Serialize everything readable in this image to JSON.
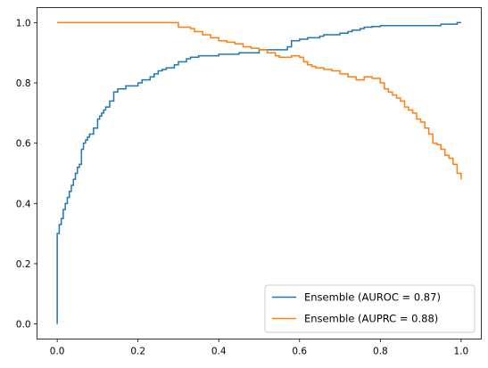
{
  "chart_data": {
    "type": "line",
    "title": "",
    "xlabel": "",
    "ylabel": "",
    "xlim": [
      -0.05,
      1.05
    ],
    "ylim": [
      -0.05,
      1.05
    ],
    "grid": false,
    "legend_position": "lower-right",
    "x_ticks": [
      "0.0",
      "0.2",
      "0.4",
      "0.6",
      "0.8",
      "1.0"
    ],
    "y_ticks": [
      "0.0",
      "0.2",
      "0.4",
      "0.6",
      "0.8",
      "1.0"
    ],
    "series": [
      {
        "name": "Ensemble (AUROC = 0.87)",
        "color": "#1f77b4",
        "step": true,
        "x": [
          0.0,
          0.0,
          0.005,
          0.01,
          0.015,
          0.02,
          0.025,
          0.03,
          0.035,
          0.04,
          0.045,
          0.05,
          0.055,
          0.06,
          0.065,
          0.07,
          0.075,
          0.08,
          0.09,
          0.1,
          0.105,
          0.11,
          0.115,
          0.12,
          0.13,
          0.14,
          0.15,
          0.155,
          0.17,
          0.18,
          0.2,
          0.21,
          0.23,
          0.24,
          0.25,
          0.26,
          0.27,
          0.28,
          0.29,
          0.3,
          0.32,
          0.33,
          0.35,
          0.4,
          0.45,
          0.5,
          0.55,
          0.57,
          0.58,
          0.6,
          0.62,
          0.64,
          0.65,
          0.66,
          0.67,
          0.7,
          0.72,
          0.73,
          0.75,
          0.76,
          0.78,
          0.8,
          0.88,
          0.95,
          0.99,
          1.0
        ],
        "y": [
          0.0,
          0.3,
          0.33,
          0.35,
          0.38,
          0.4,
          0.42,
          0.44,
          0.46,
          0.48,
          0.5,
          0.52,
          0.53,
          0.58,
          0.6,
          0.61,
          0.62,
          0.63,
          0.65,
          0.68,
          0.69,
          0.7,
          0.71,
          0.72,
          0.74,
          0.77,
          0.78,
          0.78,
          0.79,
          0.79,
          0.8,
          0.81,
          0.82,
          0.83,
          0.84,
          0.845,
          0.85,
          0.85,
          0.86,
          0.87,
          0.88,
          0.885,
          0.89,
          0.895,
          0.9,
          0.91,
          0.91,
          0.92,
          0.94,
          0.945,
          0.95,
          0.95,
          0.955,
          0.96,
          0.96,
          0.965,
          0.97,
          0.975,
          0.98,
          0.985,
          0.987,
          0.99,
          0.99,
          0.995,
          1.0,
          1.0
        ]
      },
      {
        "name": "Ensemble (AUPRC = 0.88)",
        "color": "#ff7f0e",
        "step": true,
        "x": [
          0.0,
          0.3,
          0.33,
          0.34,
          0.36,
          0.38,
          0.4,
          0.42,
          0.44,
          0.46,
          0.48,
          0.5,
          0.52,
          0.54,
          0.55,
          0.58,
          0.6,
          0.61,
          0.62,
          0.63,
          0.64,
          0.66,
          0.68,
          0.7,
          0.72,
          0.74,
          0.76,
          0.78,
          0.8,
          0.81,
          0.82,
          0.83,
          0.84,
          0.85,
          0.86,
          0.87,
          0.88,
          0.89,
          0.9,
          0.91,
          0.92,
          0.93,
          0.94,
          0.95,
          0.96,
          0.97,
          0.98,
          0.99,
          1.0
        ],
        "y": [
          1.0,
          0.985,
          0.98,
          0.97,
          0.96,
          0.95,
          0.94,
          0.935,
          0.93,
          0.92,
          0.915,
          0.91,
          0.9,
          0.89,
          0.885,
          0.89,
          0.885,
          0.87,
          0.86,
          0.855,
          0.85,
          0.845,
          0.84,
          0.83,
          0.82,
          0.81,
          0.82,
          0.815,
          0.8,
          0.78,
          0.77,
          0.76,
          0.75,
          0.74,
          0.72,
          0.71,
          0.7,
          0.68,
          0.67,
          0.65,
          0.63,
          0.6,
          0.595,
          0.58,
          0.56,
          0.55,
          0.53,
          0.5,
          0.48
        ]
      }
    ]
  }
}
